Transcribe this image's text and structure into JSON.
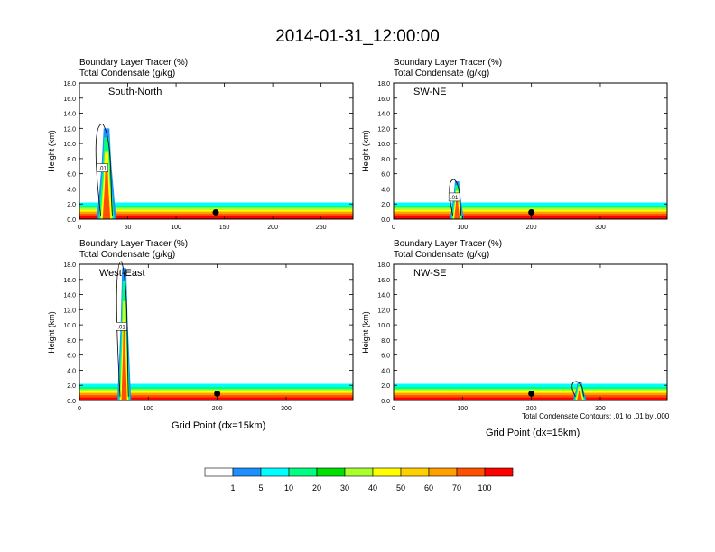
{
  "title": "2014-01-31_12:00:00",
  "chart_data": [
    {
      "id": "sn",
      "type": "heatmap",
      "header_line1": "Boundary Layer Tracer   (%)",
      "header_line2": "Total Condensate   (g/kg)",
      "label": "South-North",
      "xlim": [
        0,
        283
      ],
      "ylim": [
        0,
        18
      ],
      "xticks": [
        0,
        50,
        100,
        150,
        200,
        250
      ],
      "yticks": [
        0,
        2,
        4,
        6,
        8,
        10,
        12,
        14,
        16,
        18
      ],
      "ylabel": "Height (km)",
      "xlabel": "",
      "marker_x": 141,
      "contour_label": ".01",
      "plume": {
        "x": 28,
        "top": 12
      }
    },
    {
      "id": "swne",
      "type": "heatmap",
      "header_line1": "Boundary Layer Tracer   (%)",
      "header_line2": "Total Condensate   (g/kg)",
      "label": "SW-NE",
      "xlim": [
        0,
        397
      ],
      "ylim": [
        0,
        18
      ],
      "xticks": [
        0,
        100,
        200,
        300
      ],
      "yticks": [
        0,
        2,
        4,
        6,
        8,
        10,
        12,
        14,
        16,
        18
      ],
      "ylabel": "Height (km)",
      "xlabel": "",
      "marker_x": 200,
      "contour_label": ".01",
      "plume": {
        "x": 92,
        "top": 5
      }
    },
    {
      "id": "we",
      "type": "heatmap",
      "header_line1": "Boundary Layer Tracer   (%)",
      "header_line2": "Total Condensate   (g/kg)",
      "label": "West-East",
      "xlim": [
        0,
        397
      ],
      "ylim": [
        0,
        18
      ],
      "xticks": [
        0,
        100,
        200,
        300
      ],
      "yticks": [
        0,
        2,
        4,
        6,
        8,
        10,
        12,
        14,
        16,
        18
      ],
      "ylabel": "Height (km)",
      "xlabel": "Grid Point (dx=15km)",
      "marker_x": 200,
      "contour_label": ".01",
      "plume": {
        "x": 65,
        "top": 17.5
      }
    },
    {
      "id": "nwse",
      "type": "heatmap",
      "header_line1": "Boundary Layer Tracer   (%)",
      "header_line2": "Total Condensate   (g/kg)",
      "label": "NW-SE",
      "xlim": [
        0,
        397
      ],
      "ylim": [
        0,
        18
      ],
      "xticks": [
        0,
        100,
        200,
        300
      ],
      "yticks": [
        0,
        2,
        4,
        6,
        8,
        10,
        12,
        14,
        16,
        18
      ],
      "ylabel": "Height (km)",
      "xlabel": "Grid Point (dx=15km)",
      "marker_x": 200,
      "contour_label": "",
      "plume": {
        "x": 270,
        "top": 2.4
      }
    }
  ],
  "footnote": "Total Condensate Contours: .01 to .01 by .000",
  "colorbar": {
    "levels": [
      "1",
      "5",
      "10",
      "20",
      "30",
      "40",
      "50",
      "60",
      "70",
      "100"
    ],
    "colors": [
      "#ffffff",
      "#1e90ff",
      "#00ffff",
      "#00ff80",
      "#00e000",
      "#aaff30",
      "#ffff00",
      "#ffd000",
      "#ffa000",
      "#ff5000",
      "#ff0000"
    ]
  }
}
